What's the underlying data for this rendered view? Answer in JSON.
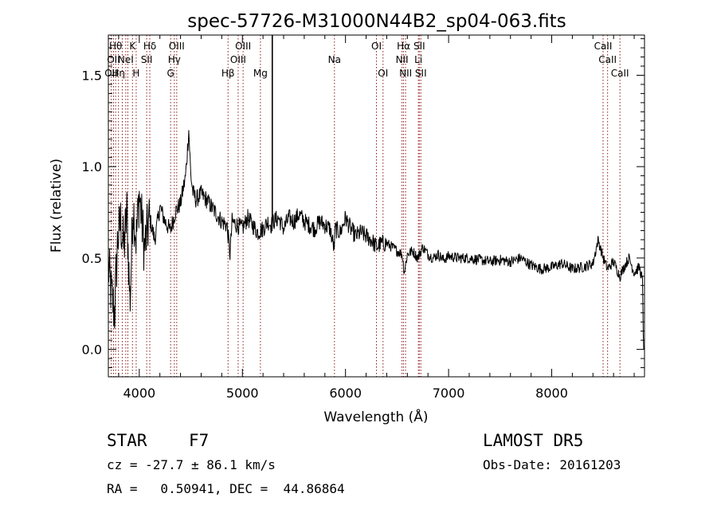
{
  "chart_data": {
    "type": "line",
    "title": "spec-57726-M31000N44B2_sp04-063.fits",
    "xlabel": "Wavelength (Å)",
    "ylabel": "Flux (relative)",
    "xlim": [
      3700,
      8900
    ],
    "ylim": [
      -0.15,
      1.72
    ],
    "x_ticks": [
      4000,
      5000,
      6000,
      7000,
      8000
    ],
    "x_tick_labels": [
      "4000",
      "5000",
      "6000",
      "7000",
      "8000"
    ],
    "y_ticks": [
      0.0,
      0.5,
      1.0,
      1.5
    ],
    "y_tick_labels": [
      "0.0",
      "0.5",
      "1.0",
      "1.5"
    ],
    "grid": false,
    "spectrum": {
      "x": [
        3700,
        3730,
        3760,
        3790,
        3820,
        3850,
        3880,
        3910,
        3940,
        3970,
        4000,
        4050,
        4100,
        4150,
        4200,
        4250,
        4300,
        4350,
        4400,
        4450,
        4480,
        4500,
        4520,
        4550,
        4600,
        4650,
        4700,
        4750,
        4800,
        4850,
        4880,
        4900,
        4950,
        5000,
        5050,
        5100,
        5150,
        5200,
        5250,
        5280,
        5300,
        5350,
        5400,
        5450,
        5500,
        5550,
        5600,
        5650,
        5700,
        5750,
        5800,
        5850,
        5890,
        5900,
        5950,
        6000,
        6050,
        6100,
        6150,
        6200,
        6250,
        6300,
        6350,
        6400,
        6450,
        6500,
        6550,
        6570,
        6600,
        6650,
        6700,
        6750,
        6800,
        6850,
        6900,
        6950,
        7000,
        7100,
        7200,
        7300,
        7400,
        7500,
        7600,
        7700,
        7800,
        7900,
        8000,
        8100,
        8200,
        8300,
        8400,
        8450,
        8500,
        8540,
        8600,
        8662,
        8700,
        8750,
        8800,
        8850,
        8880,
        8890
      ],
      "y": [
        0.45,
        0.3,
        0.2,
        0.6,
        0.7,
        0.55,
        0.75,
        0.25,
        0.8,
        0.6,
        0.85,
        0.55,
        0.72,
        0.6,
        0.78,
        0.7,
        0.65,
        0.75,
        0.8,
        0.95,
        1.2,
        0.95,
        0.86,
        0.82,
        0.85,
        0.82,
        0.78,
        0.74,
        0.7,
        0.68,
        0.52,
        0.7,
        0.68,
        0.66,
        0.72,
        0.68,
        0.64,
        0.66,
        0.7,
        0.68,
        0.7,
        0.72,
        0.66,
        0.72,
        0.7,
        0.74,
        0.7,
        0.68,
        0.66,
        0.7,
        0.68,
        0.66,
        0.55,
        0.66,
        0.64,
        0.72,
        0.66,
        0.62,
        0.64,
        0.62,
        0.6,
        0.56,
        0.58,
        0.58,
        0.56,
        0.54,
        0.52,
        0.42,
        0.52,
        0.54,
        0.5,
        0.56,
        0.52,
        0.5,
        0.52,
        0.49,
        0.51,
        0.5,
        0.5,
        0.49,
        0.48,
        0.49,
        0.48,
        0.5,
        0.46,
        0.44,
        0.45,
        0.47,
        0.44,
        0.45,
        0.47,
        0.6,
        0.5,
        0.44,
        0.48,
        0.4,
        0.45,
        0.5,
        0.42,
        0.45,
        0.38,
        0.02
      ]
    },
    "spikes": [
      {
        "x": 5290,
        "top": 1.72,
        "base": 0.69
      }
    ],
    "lines": [
      {
        "x": 3727,
        "label": "OII",
        "row": 3
      },
      {
        "x": 3750,
        "label": "OII",
        "row": 2
      },
      {
        "x": 3771,
        "label": "Hθ",
        "row": 1
      },
      {
        "x": 3798,
        "label": "Hη",
        "row": 3
      },
      {
        "x": 3835,
        "label": "",
        "row": 0
      },
      {
        "x": 3869,
        "label": "NeI",
        "row": 2
      },
      {
        "x": 3889,
        "label": "",
        "row": 0
      },
      {
        "x": 3934,
        "label": "K",
        "row": 1
      },
      {
        "x": 3970,
        "label": "H",
        "row": 3
      },
      {
        "x": 4072,
        "label": "SII",
        "row": 2
      },
      {
        "x": 4102,
        "label": "Hδ",
        "row": 1
      },
      {
        "x": 4304,
        "label": "G",
        "row": 3
      },
      {
        "x": 4340,
        "label": "Hγ",
        "row": 2
      },
      {
        "x": 4363,
        "label": "OIII",
        "row": 1
      },
      {
        "x": 4861,
        "label": "Hβ",
        "row": 3
      },
      {
        "x": 4959,
        "label": "OIII",
        "row": 2
      },
      {
        "x": 5007,
        "label": "OIII",
        "row": 1
      },
      {
        "x": 5175,
        "label": "Mg",
        "row": 3
      },
      {
        "x": 5893,
        "label": "Na",
        "row": 2
      },
      {
        "x": 6300,
        "label": "OI",
        "row": 1
      },
      {
        "x": 6364,
        "label": "OI",
        "row": 3
      },
      {
        "x": 6548,
        "label": "NII",
        "row": 2
      },
      {
        "x": 6563,
        "label": "Hα",
        "row": 1
      },
      {
        "x": 6583,
        "label": "NII",
        "row": 3
      },
      {
        "x": 6707,
        "label": "Li",
        "row": 2
      },
      {
        "x": 6716,
        "label": "SII",
        "row": 1
      },
      {
        "x": 6731,
        "label": "SII",
        "row": 3
      },
      {
        "x": 8498,
        "label": "CaII",
        "row": 1
      },
      {
        "x": 8542,
        "label": "CaII",
        "row": 2
      },
      {
        "x": 8662,
        "label": "CaII",
        "row": 3
      }
    ]
  },
  "info": {
    "class_label": "STAR",
    "subclass_label": "F7",
    "survey": "LAMOST DR5",
    "velocity": "cz = -27.7 ± 86.1 km/s",
    "obs_date": "Obs-Date: 20161203",
    "coords": "RA =   0.50941, DEC =  44.86864"
  },
  "colors": {
    "spectrum": "#000000",
    "line_marker": "#8b1a1a",
    "axes": "#000000"
  }
}
